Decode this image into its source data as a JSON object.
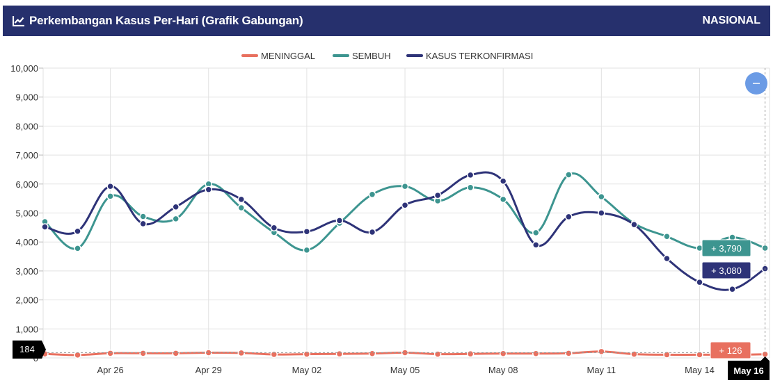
{
  "header": {
    "title": "Perkembangan Kasus Per-Hari (Grafik Gabungan)",
    "region": "NASIONAL",
    "icon": "line-chart-icon"
  },
  "controls": {
    "reset_zoom_icon": "minus-icon"
  },
  "colors": {
    "header_bg": "#26306d",
    "meninggal": "#e8705f",
    "sembuh": "#3d9590",
    "terkonfirmasi": "#2e3378",
    "zoom_button": "#6b9be5",
    "label_dark": "#000000"
  },
  "chart_data": {
    "type": "line",
    "title": "Perkembangan Kasus Per-Hari (Grafik Gabungan)",
    "x_tick_labels": [
      "Apr 26",
      "Apr 29",
      "May 02",
      "May 05",
      "May 08",
      "May 11",
      "May 14"
    ],
    "x_dates": [
      "Apr 24",
      "Apr 25",
      "Apr 26",
      "Apr 27",
      "Apr 28",
      "Apr 29",
      "Apr 30",
      "May 01",
      "May 02",
      "May 03",
      "May 04",
      "May 05",
      "May 06",
      "May 07",
      "May 08",
      "May 09",
      "May 10",
      "May 11",
      "May 12",
      "May 13",
      "May 14",
      "May 15",
      "May 16"
    ],
    "y_ticks": [
      "0",
      "1,000",
      "2,000",
      "3,000",
      "4,000",
      "5,000",
      "6,000",
      "7,000",
      "8,000",
      "9,000",
      "10,000"
    ],
    "ylim": [
      0,
      10000
    ],
    "grid": true,
    "legend_position": "top-center",
    "series": [
      {
        "name": "MENINGGAL",
        "color": "#e8705f",
        "values": [
          140,
          100,
          160,
          160,
          160,
          180,
          170,
          120,
          130,
          140,
          150,
          180,
          130,
          140,
          150,
          150,
          160,
          220,
          130,
          110,
          110,
          110,
          126
        ]
      },
      {
        "name": "SEMBUH",
        "color": "#3d9590",
        "values": [
          4700,
          3780,
          5580,
          4880,
          4800,
          6000,
          5180,
          4330,
          3720,
          4650,
          5640,
          5920,
          5420,
          5880,
          5470,
          4320,
          6320,
          5560,
          4640,
          4190,
          3790,
          4160,
          3790
        ]
      },
      {
        "name": "KASUS TERKONFIRMASI",
        "color": "#2e3378",
        "values": [
          4520,
          4370,
          5920,
          4630,
          5210,
          5810,
          5470,
          4490,
          4360,
          4740,
          4340,
          5270,
          5610,
          6310,
          6100,
          3900,
          4870,
          5000,
          4600,
          3430,
          2610,
          2370,
          3080
        ]
      }
    ],
    "annotations": {
      "sembuh_last": "+ 3,790",
      "terkonfirmasi_last": "+ 3,080",
      "meninggal_last": "+ 126",
      "crosshair_y_label": "184",
      "crosshair_x_label": "May 16"
    }
  }
}
